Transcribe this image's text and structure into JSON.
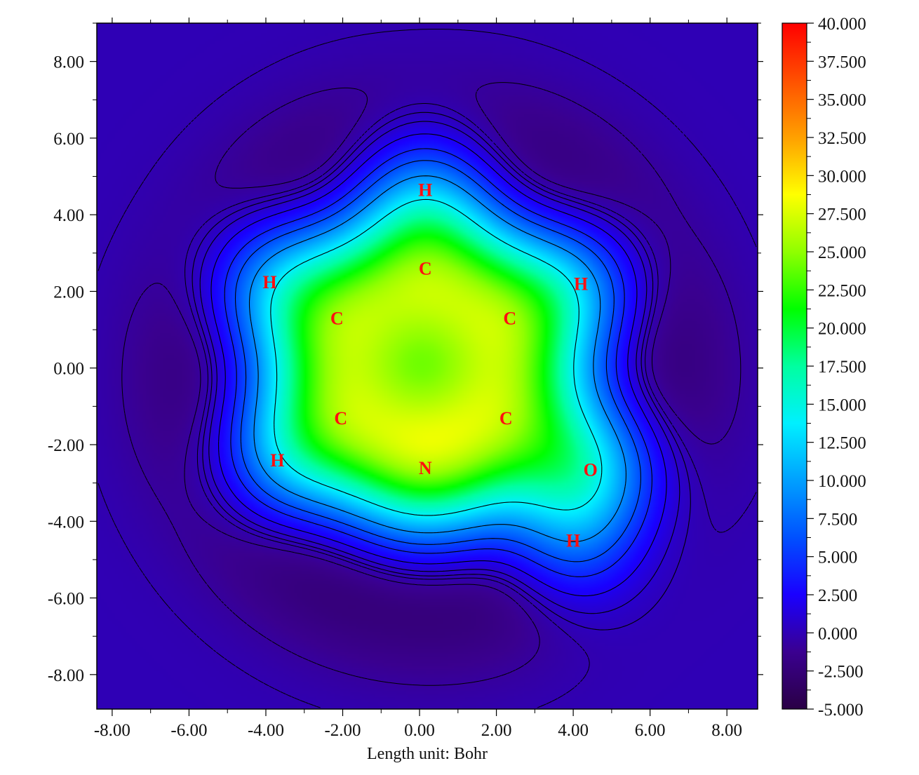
{
  "chart_data": {
    "type": "heatmap",
    "title": "",
    "xlabel": "Length unit: Bohr",
    "ylabel": "",
    "xlim": [
      -8.4,
      8.8
    ],
    "ylim": [
      -8.9,
      9.0
    ],
    "x_ticks": [
      "-8.00",
      "-6.00",
      "-4.00",
      "-2.00",
      "0.00",
      "2.00",
      "4.00",
      "6.00",
      "8.00"
    ],
    "x_tick_values": [
      -8,
      -6,
      -4,
      -2,
      0,
      2,
      4,
      6,
      8
    ],
    "y_ticks": [
      "8.00",
      "6.00",
      "4.00",
      "2.00",
      "0.00",
      "-2.00",
      "-4.00",
      "-6.00",
      "-8.00"
    ],
    "y_tick_values": [
      8,
      6,
      4,
      2,
      0,
      -2,
      -4,
      -6,
      -8
    ],
    "colorbar": {
      "range": [
        -5,
        40
      ],
      "labels": [
        "40.000",
        "37.500",
        "35.000",
        "32.500",
        "30.000",
        "27.500",
        "25.000",
        "22.500",
        "20.000",
        "17.500",
        "15.000",
        "12.500",
        "10.000",
        "7.500",
        "5.000",
        "2.500",
        "0.000",
        "-2.500",
        "-5.000"
      ],
      "label_values": [
        40,
        37.5,
        35,
        32.5,
        30,
        27.5,
        25,
        22.5,
        20,
        17.5,
        15,
        12.5,
        10,
        7.5,
        5,
        2.5,
        0,
        -2.5,
        -5
      ],
      "colors": [
        "#2a0045",
        "#3a0090",
        "#1a00ff",
        "#0050ff",
        "#00a0ff",
        "#00f0ff",
        "#00ffa0",
        "#00ff00",
        "#90ff00",
        "#ffff00",
        "#ffa000",
        "#ff5000",
        "#ff0000"
      ]
    },
    "atoms": [
      {
        "label": "H",
        "x": 0.15,
        "y": 4.65
      },
      {
        "label": "C",
        "x": 0.15,
        "y": 2.6
      },
      {
        "label": "H",
        "x": -3.9,
        "y": 2.25
      },
      {
        "label": "H",
        "x": 4.2,
        "y": 2.2
      },
      {
        "label": "C",
        "x": -2.15,
        "y": 1.3
      },
      {
        "label": "C",
        "x": 2.35,
        "y": 1.3
      },
      {
        "label": "C",
        "x": -2.05,
        "y": -1.3
      },
      {
        "label": "C",
        "x": 2.25,
        "y": -1.3
      },
      {
        "label": "H",
        "x": -3.7,
        "y": -2.4
      },
      {
        "label": "N",
        "x": 0.15,
        "y": -2.6
      },
      {
        "label": "O",
        "x": 4.45,
        "y": -2.65
      },
      {
        "label": "H",
        "x": 4.0,
        "y": -4.5
      }
    ],
    "contours": {
      "solid": "positive levels",
      "dashed": "zero / negative levels"
    }
  }
}
